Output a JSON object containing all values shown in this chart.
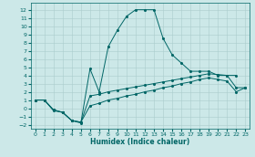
{
  "bg_color": "#cce8e8",
  "line_color": "#006666",
  "grid_color": "#aacccc",
  "xlabel": "Humidex (Indice chaleur)",
  "xlim": [
    -0.5,
    23.5
  ],
  "ylim": [
    -2.5,
    12.8
  ],
  "xticks": [
    0,
    1,
    2,
    3,
    4,
    5,
    6,
    7,
    8,
    9,
    10,
    11,
    12,
    13,
    14,
    15,
    16,
    17,
    18,
    19,
    20,
    21,
    22,
    23
  ],
  "yticks": [
    -2,
    -1,
    0,
    1,
    2,
    3,
    4,
    5,
    6,
    7,
    8,
    9,
    10,
    11,
    12
  ],
  "peaked_x": [
    0,
    1,
    2,
    3,
    4,
    5,
    6,
    7,
    8,
    9,
    10,
    11,
    12,
    13,
    14,
    15,
    16,
    17,
    18,
    19,
    20,
    21,
    22
  ],
  "peaked_y": [
    1.0,
    1.0,
    -0.3,
    -0.5,
    -1.5,
    -1.8,
    4.8,
    2.0,
    7.5,
    9.5,
    11.2,
    12.0,
    12.0,
    12.0,
    8.5,
    6.5,
    5.5,
    4.5,
    4.5,
    4.5,
    4.0,
    4.0,
    4.0
  ],
  "line1_x": [
    0,
    1,
    2,
    3,
    4,
    5,
    6,
    7,
    8,
    9,
    10,
    11,
    12,
    13,
    14,
    15,
    16,
    17,
    18,
    19,
    20,
    21,
    22,
    23
  ],
  "line1_y": [
    1.0,
    1.0,
    -0.2,
    -0.5,
    -1.5,
    -1.7,
    1.5,
    1.7,
    2.0,
    2.2,
    2.4,
    2.6,
    2.8,
    3.0,
    3.2,
    3.4,
    3.6,
    3.8,
    4.0,
    4.2,
    4.1,
    4.0,
    2.5,
    2.5
  ],
  "line2_x": [
    0,
    1,
    2,
    3,
    4,
    5,
    6,
    7,
    8,
    9,
    10,
    11,
    12,
    13,
    14,
    15,
    16,
    17,
    18,
    19,
    20,
    21,
    22,
    23
  ],
  "line2_y": [
    1.0,
    1.0,
    -0.2,
    -0.5,
    -1.5,
    -1.7,
    0.3,
    0.6,
    1.0,
    1.2,
    1.5,
    1.7,
    2.0,
    2.2,
    2.5,
    2.7,
    3.0,
    3.2,
    3.5,
    3.7,
    3.5,
    3.3,
    2.0,
    2.5
  ]
}
